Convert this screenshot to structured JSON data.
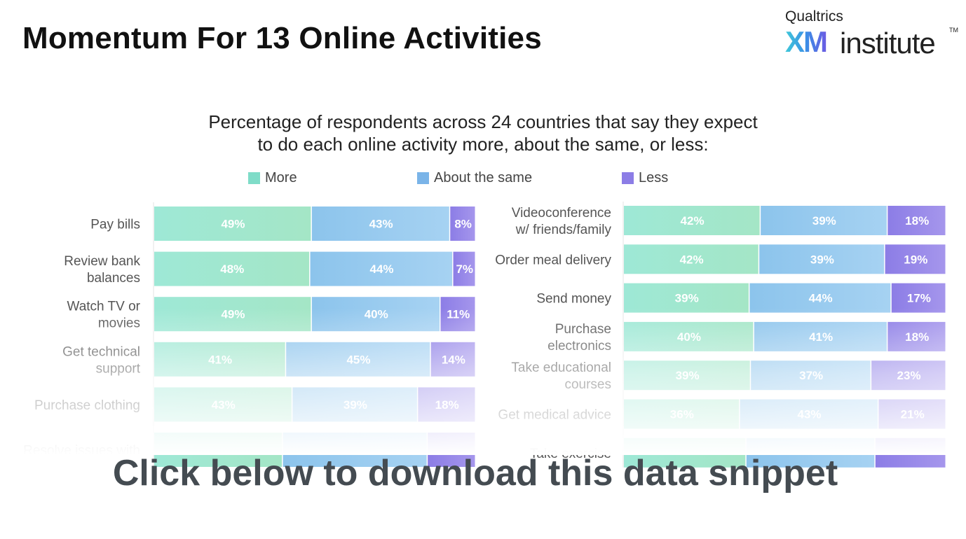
{
  "header": {
    "title": "Momentum For 13 Online Activities"
  },
  "logo": {
    "top_text": "Qualtrics",
    "xm": "XM",
    "word": "institute",
    "tm": "TM"
  },
  "cta": {
    "label": "Click below to download this data snippet"
  },
  "colors": {
    "more": "#7fdcc8",
    "about_same": "#7ab4e8",
    "less": "#8c7de6"
  },
  "chart_data": {
    "type": "bar",
    "orientation": "horizontal-stacked-100",
    "subtitle_lines": [
      "Percentage of respondents across 24 countries that say they expect",
      "to do each online activity more, about the same, or less:"
    ],
    "legend": [
      "More",
      "About the same",
      "Less"
    ],
    "series_names": [
      "More",
      "About the same",
      "Less"
    ],
    "panels": [
      {
        "categories": [
          [
            "Pay bills"
          ],
          [
            "Review bank",
            "balances"
          ],
          [
            "Watch TV or",
            "movies"
          ],
          [
            "Get technical",
            "support"
          ],
          [
            "Purchase clothing"
          ],
          [
            "Resolve issues with"
          ]
        ],
        "values": [
          [
            49,
            43,
            8
          ],
          [
            48,
            44,
            7
          ],
          [
            49,
            40,
            11
          ],
          [
            41,
            45,
            14
          ],
          [
            43,
            39,
            18
          ],
          [
            40,
            45,
            15
          ]
        ],
        "labels": [
          [
            "49%",
            "43%",
            "8%"
          ],
          [
            "48%",
            "44%",
            "7%"
          ],
          [
            "49%",
            "40%",
            "11%"
          ],
          [
            "41%",
            "45%",
            "14%"
          ],
          [
            "43%",
            "39%",
            "18%"
          ],
          [
            "",
            "",
            ""
          ]
        ]
      },
      {
        "categories": [
          [
            "Videoconference",
            "w/ friends/family"
          ],
          [
            "Order meal delivery"
          ],
          [
            "Send money"
          ],
          [
            "Purchase",
            "electronics"
          ],
          [
            "Take educational",
            "courses"
          ],
          [
            "Get medical advice"
          ],
          [
            "Take exercise"
          ]
        ],
        "values": [
          [
            42,
            39,
            18
          ],
          [
            42,
            39,
            19
          ],
          [
            39,
            44,
            17
          ],
          [
            40,
            41,
            18
          ],
          [
            39,
            37,
            23
          ],
          [
            36,
            43,
            21
          ],
          [
            38,
            40,
            22
          ]
        ],
        "labels": [
          [
            "42%",
            "39%",
            "18%"
          ],
          [
            "42%",
            "39%",
            "19%"
          ],
          [
            "39%",
            "44%",
            "17%"
          ],
          [
            "40%",
            "41%",
            "18%"
          ],
          [
            "39%",
            "37%",
            "23%"
          ],
          [
            "36%",
            "43%",
            "21%"
          ],
          [
            "",
            "",
            ""
          ]
        ]
      }
    ]
  }
}
